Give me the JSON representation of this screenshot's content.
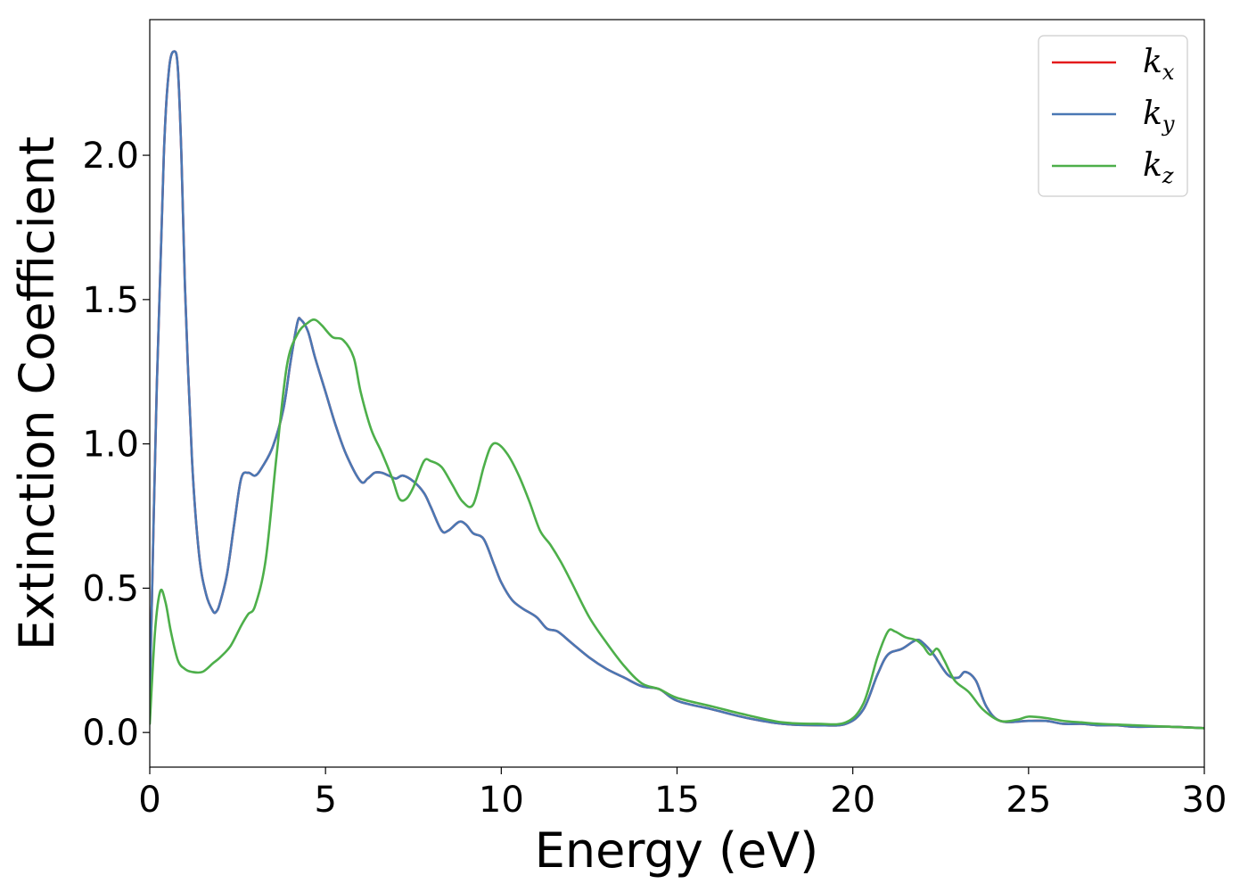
{
  "chart_data": {
    "type": "line",
    "xlabel": "Energy (eV)",
    "ylabel": "Extinction Coefficient",
    "xlim": [
      0,
      30
    ],
    "ylim": [
      -0.12,
      2.47
    ],
    "xticks": [
      "0",
      "5",
      "10",
      "15",
      "20",
      "25",
      "30"
    ],
    "xtick_values": [
      0,
      5,
      10,
      15,
      20,
      25,
      30
    ],
    "yticks": [
      "0.0",
      "0.5",
      "1.0",
      "1.5",
      "2.0"
    ],
    "ytick_values": [
      0,
      0.5,
      1.0,
      1.5,
      2.0
    ],
    "grid": false,
    "legend_position": "top-right",
    "series": [
      {
        "name": "k_x",
        "legend_base": "k",
        "legend_sub": "x",
        "color": "#e41a1c",
        "x": [
          0,
          0.2,
          0.4,
          0.55,
          0.7,
          0.8,
          0.9,
          1.0,
          1.2,
          1.4,
          1.6,
          1.8,
          1.9,
          2.0,
          2.2,
          2.4,
          2.6,
          2.8,
          3.0,
          3.2,
          3.5,
          3.8,
          4.0,
          4.2,
          4.3,
          4.5,
          4.7,
          5.0,
          5.3,
          5.6,
          6.0,
          6.2,
          6.4,
          6.6,
          6.8,
          7.0,
          7.2,
          7.5,
          7.8,
          8.0,
          8.3,
          8.5,
          8.8,
          9.0,
          9.2,
          9.5,
          9.8,
          10.0,
          10.3,
          10.6,
          11.0,
          11.3,
          11.6,
          12.0,
          12.5,
          13.0,
          13.5,
          14.0,
          14.5,
          15.0,
          16.0,
          17.0,
          18.0,
          19.0,
          19.8,
          20.3,
          20.7,
          21.0,
          21.4,
          21.8,
          22.0,
          22.3,
          22.7,
          23.0,
          23.2,
          23.5,
          23.8,
          24.2,
          25.0,
          25.5,
          26.0,
          26.5,
          27.0,
          27.5,
          28.0,
          29.0,
          30.0
        ],
        "values": [
          0.12,
          1.2,
          2.0,
          2.3,
          2.36,
          2.3,
          2.0,
          1.55,
          0.95,
          0.62,
          0.48,
          0.42,
          0.42,
          0.45,
          0.55,
          0.72,
          0.88,
          0.9,
          0.89,
          0.92,
          0.99,
          1.12,
          1.28,
          1.42,
          1.43,
          1.39,
          1.3,
          1.18,
          1.06,
          0.96,
          0.87,
          0.88,
          0.9,
          0.9,
          0.89,
          0.88,
          0.89,
          0.87,
          0.83,
          0.78,
          0.7,
          0.7,
          0.73,
          0.72,
          0.69,
          0.67,
          0.58,
          0.52,
          0.46,
          0.43,
          0.4,
          0.36,
          0.35,
          0.31,
          0.26,
          0.22,
          0.19,
          0.16,
          0.15,
          0.11,
          0.08,
          0.05,
          0.03,
          0.025,
          0.03,
          0.08,
          0.2,
          0.27,
          0.29,
          0.32,
          0.31,
          0.27,
          0.2,
          0.19,
          0.21,
          0.18,
          0.09,
          0.04,
          0.04,
          0.04,
          0.03,
          0.03,
          0.025,
          0.025,
          0.02,
          0.02,
          0.015
        ]
      },
      {
        "name": "k_y",
        "legend_base": "k",
        "legend_sub": "y",
        "color": "#4a78b4",
        "x": [
          0,
          0.2,
          0.4,
          0.55,
          0.7,
          0.8,
          0.9,
          1.0,
          1.2,
          1.4,
          1.6,
          1.8,
          1.9,
          2.0,
          2.2,
          2.4,
          2.6,
          2.8,
          3.0,
          3.2,
          3.5,
          3.8,
          4.0,
          4.2,
          4.3,
          4.5,
          4.7,
          5.0,
          5.3,
          5.6,
          6.0,
          6.2,
          6.4,
          6.6,
          6.8,
          7.0,
          7.2,
          7.5,
          7.8,
          8.0,
          8.3,
          8.5,
          8.8,
          9.0,
          9.2,
          9.5,
          9.8,
          10.0,
          10.3,
          10.6,
          11.0,
          11.3,
          11.6,
          12.0,
          12.5,
          13.0,
          13.5,
          14.0,
          14.5,
          15.0,
          16.0,
          17.0,
          18.0,
          19.0,
          19.8,
          20.3,
          20.7,
          21.0,
          21.4,
          21.8,
          22.0,
          22.3,
          22.7,
          23.0,
          23.2,
          23.5,
          23.8,
          24.2,
          25.0,
          25.5,
          26.0,
          26.5,
          27.0,
          27.5,
          28.0,
          29.0,
          30.0
        ],
        "values": [
          0.12,
          1.2,
          2.0,
          2.3,
          2.36,
          2.3,
          2.0,
          1.55,
          0.95,
          0.62,
          0.48,
          0.42,
          0.42,
          0.45,
          0.55,
          0.72,
          0.88,
          0.9,
          0.89,
          0.92,
          0.99,
          1.12,
          1.28,
          1.42,
          1.43,
          1.39,
          1.3,
          1.18,
          1.06,
          0.96,
          0.87,
          0.88,
          0.9,
          0.9,
          0.89,
          0.88,
          0.89,
          0.87,
          0.83,
          0.78,
          0.7,
          0.7,
          0.73,
          0.72,
          0.69,
          0.67,
          0.58,
          0.52,
          0.46,
          0.43,
          0.4,
          0.36,
          0.35,
          0.31,
          0.26,
          0.22,
          0.19,
          0.16,
          0.15,
          0.11,
          0.08,
          0.05,
          0.03,
          0.025,
          0.03,
          0.08,
          0.2,
          0.27,
          0.29,
          0.32,
          0.31,
          0.27,
          0.2,
          0.19,
          0.21,
          0.18,
          0.09,
          0.04,
          0.04,
          0.04,
          0.03,
          0.03,
          0.025,
          0.025,
          0.02,
          0.02,
          0.015
        ]
      },
      {
        "name": "k_z",
        "legend_base": "k",
        "legend_sub": "z",
        "color": "#4daf4a",
        "x": [
          0,
          0.15,
          0.3,
          0.45,
          0.6,
          0.8,
          1.0,
          1.2,
          1.5,
          1.8,
          2.0,
          2.3,
          2.6,
          2.8,
          3.0,
          3.3,
          3.6,
          3.9,
          4.2,
          4.5,
          4.7,
          4.9,
          5.2,
          5.5,
          5.8,
          6.0,
          6.3,
          6.6,
          6.9,
          7.1,
          7.3,
          7.5,
          7.8,
          8.0,
          8.3,
          8.6,
          8.9,
          9.2,
          9.5,
          9.7,
          9.9,
          10.2,
          10.5,
          10.8,
          11.1,
          11.4,
          11.7,
          12.0,
          12.5,
          13.0,
          13.5,
          14.0,
          14.5,
          15.0,
          16.0,
          17.0,
          18.0,
          19.0,
          19.8,
          20.3,
          20.7,
          21.0,
          21.2,
          21.5,
          21.8,
          22.0,
          22.2,
          22.4,
          22.6,
          22.9,
          23.3,
          23.7,
          24.2,
          24.7,
          25.0,
          25.5,
          26.0,
          26.5,
          27.0,
          28.0,
          29.0,
          30.0
        ],
        "values": [
          0.03,
          0.35,
          0.49,
          0.45,
          0.35,
          0.25,
          0.22,
          0.21,
          0.21,
          0.24,
          0.26,
          0.3,
          0.37,
          0.41,
          0.44,
          0.6,
          0.95,
          1.27,
          1.38,
          1.42,
          1.43,
          1.41,
          1.37,
          1.36,
          1.3,
          1.18,
          1.05,
          0.97,
          0.88,
          0.81,
          0.81,
          0.85,
          0.94,
          0.94,
          0.92,
          0.86,
          0.8,
          0.79,
          0.92,
          0.99,
          1.0,
          0.96,
          0.89,
          0.8,
          0.7,
          0.65,
          0.59,
          0.52,
          0.4,
          0.31,
          0.23,
          0.17,
          0.15,
          0.12,
          0.09,
          0.06,
          0.035,
          0.03,
          0.035,
          0.1,
          0.26,
          0.35,
          0.35,
          0.33,
          0.32,
          0.3,
          0.27,
          0.29,
          0.25,
          0.18,
          0.14,
          0.08,
          0.04,
          0.045,
          0.055,
          0.05,
          0.04,
          0.035,
          0.03,
          0.025,
          0.02,
          0.015
        ]
      }
    ]
  }
}
